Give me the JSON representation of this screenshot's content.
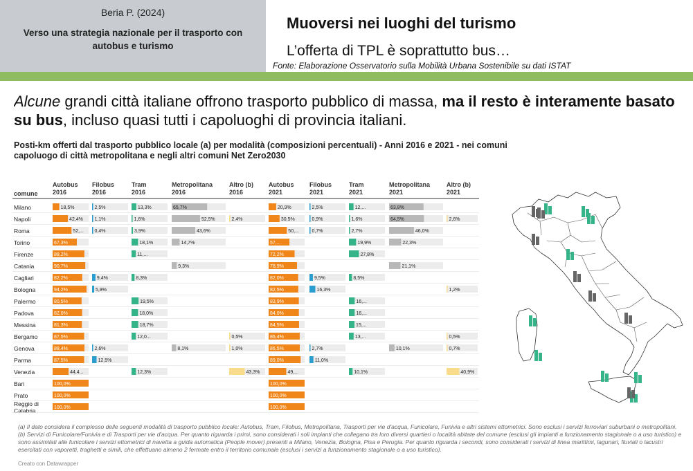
{
  "header": {
    "author": "Beria P. (2024)",
    "subtitle": "Verso una strategia nazionale per il trasporto con autobus e turismo",
    "title": "Muoversi nei luoghi del turismo",
    "subtitle2": "L’offerta di TPL è soprattutto bus…",
    "source": "Fonte: Elaborazione Osservatorio sulla Mobilità Urbana Sostenibile su dati ISTAT"
  },
  "lead": {
    "italic": "Alcune",
    "part1": " grandi città italiane offrono trasporto pubblico di massa, ",
    "bold": "ma il resto è interamente basato su bus",
    "part2": ", incluso quasi tutti i capoluoghi di provincia italiani."
  },
  "colors": {
    "autobus": "#f08519",
    "filobus": "#2a9ed0",
    "tram": "#35b48a",
    "metropolitana": "#b8b8b8",
    "altro": "#f8dc8c",
    "header_bg": "#c8ccd0",
    "green_bar": "#8fbc5e"
  },
  "chart_data": {
    "type": "table",
    "title": "Posti-km offerti dal trasporto pubblico locale (a) per modalità (composizioni percentuali) - Anni 2016 e 2021 - nei comuni capoluogo di città metropolitana e negli altri comuni Net Zero2030",
    "row_header": "comune",
    "columns": [
      {
        "label": [
          "Autobus",
          "2016"
        ],
        "mode": "autobus"
      },
      {
        "label": [
          "Filobus",
          "2016"
        ],
        "mode": "filobus"
      },
      {
        "label": [
          "Tram",
          "2016"
        ],
        "mode": "tram"
      },
      {
        "label": [
          "Metropolitana",
          "2016"
        ],
        "mode": "metropolitana"
      },
      {
        "label": [
          "Altro (b)",
          "2016"
        ],
        "mode": "altro"
      },
      {
        "label": [
          "Autobus",
          "2021"
        ],
        "mode": "autobus"
      },
      {
        "label": [
          "Filobus",
          "2021"
        ],
        "mode": "filobus"
      },
      {
        "label": [
          "Tram",
          "2021"
        ],
        "mode": "tram"
      },
      {
        "label": [
          "Metropolitana",
          "2021"
        ],
        "mode": "metropolitana"
      },
      {
        "label": [
          "Altro (b)",
          "2021"
        ],
        "mode": "altro"
      }
    ],
    "rows": [
      {
        "city": "Milano",
        "values": [
          18.5,
          2.5,
          13.3,
          65.7,
          null,
          20.9,
          2.5,
          12.8,
          63.8,
          null
        ],
        "labels": [
          "18,5%",
          "2,5%",
          "13,3%",
          "65,7%",
          "",
          "20,9%",
          "2,5%",
          "12,...",
          "63,8%",
          ""
        ]
      },
      {
        "city": "Napoli",
        "values": [
          42.4,
          1.1,
          1.6,
          52.5,
          2.4,
          30.5,
          0.9,
          1.6,
          64.5,
          2.6
        ],
        "labels": [
          "42,4%",
          "1,1%",
          "1,6%",
          "52,5%",
          "2,4%",
          "30,5%",
          "0,9%",
          "1,6%",
          "64,5%",
          "2,6%"
        ]
      },
      {
        "city": "Roma",
        "values": [
          52.5,
          0.4,
          3.9,
          43.6,
          null,
          50.6,
          0.7,
          2.7,
          46.0,
          null
        ],
        "labels": [
          "52,...",
          "0,4%",
          "3,9%",
          "43,6%",
          "",
          "50,...",
          "0,7%",
          "2,7%",
          "46,0%",
          ""
        ]
      },
      {
        "city": "Torino",
        "values": [
          67.3,
          null,
          18.1,
          14.7,
          null,
          57.8,
          null,
          19.9,
          22.3,
          null
        ],
        "labels": [
          "67,3%",
          "",
          "18,1%",
          "14,7%",
          "",
          "57,...",
          "",
          "19,9%",
          "22,3%",
          ""
        ]
      },
      {
        "city": "Firenze",
        "values": [
          88.2,
          null,
          11.8,
          null,
          null,
          72.2,
          null,
          27.8,
          null,
          null
        ],
        "labels": [
          "88,2%",
          "",
          "11,...",
          "",
          "",
          "72,2%",
          "",
          "27,8%",
          "",
          ""
        ]
      },
      {
        "city": "Catania",
        "values": [
          90.7,
          null,
          null,
          9.3,
          null,
          78.9,
          null,
          null,
          21.1,
          null
        ],
        "labels": [
          "90,7%",
          "",
          "",
          "9,3%",
          "",
          "78,9%",
          "",
          "",
          "21,1%",
          ""
        ]
      },
      {
        "city": "Cagliari",
        "values": [
          82.2,
          9.4,
          8.3,
          null,
          null,
          82.0,
          9.5,
          8.5,
          null,
          null
        ],
        "labels": [
          "82,2%",
          "9,4%",
          "8,3%",
          "",
          "",
          "82,0%",
          "9,5%",
          "8,5%",
          "",
          ""
        ]
      },
      {
        "city": "Bologna",
        "values": [
          94.2,
          5.8,
          null,
          null,
          null,
          82.5,
          16.3,
          null,
          null,
          1.2
        ],
        "labels": [
          "94,2%",
          "5,8%",
          "",
          "",
          "",
          "82,5%",
          "16,3%",
          "",
          "",
          "1,2%"
        ]
      },
      {
        "city": "Palermo",
        "values": [
          80.5,
          null,
          19.5,
          null,
          null,
          83.9,
          null,
          16.1,
          null,
          null
        ],
        "labels": [
          "80,5%",
          "",
          "19,5%",
          "",
          "",
          "83,9%",
          "",
          "16,...",
          "",
          ""
        ]
      },
      {
        "city": "Padova",
        "values": [
          82.0,
          null,
          18.0,
          null,
          null,
          84.0,
          null,
          16.0,
          null,
          null
        ],
        "labels": [
          "82,0%",
          "",
          "18,0%",
          "",
          "",
          "84,0%",
          "",
          "16,...",
          "",
          ""
        ]
      },
      {
        "city": "Messina",
        "values": [
          81.3,
          null,
          18.7,
          null,
          null,
          84.5,
          null,
          15.5,
          null,
          null
        ],
        "labels": [
          "81,3%",
          "",
          "18,7%",
          "",
          "",
          "84,5%",
          "",
          "15,...",
          "",
          ""
        ]
      },
      {
        "city": "Bergamo",
        "values": [
          87.5,
          null,
          12.0,
          null,
          0.5,
          86.4,
          null,
          13.1,
          null,
          0.5
        ],
        "labels": [
          "87,5%",
          "",
          "12,0...",
          "",
          "0,5%",
          "86,4%",
          "",
          "13,...",
          "",
          "0,5%"
        ]
      },
      {
        "city": "Genova",
        "values": [
          88.4,
          2.6,
          null,
          8.1,
          1.0,
          86.5,
          2.7,
          null,
          10.1,
          0.7
        ],
        "labels": [
          "88,4%",
          "2,6%",
          "",
          "8,1%",
          "1,0%",
          "86,5%",
          "2,7%",
          "",
          "10,1%",
          "0,7%"
        ]
      },
      {
        "city": "Parma",
        "values": [
          87.5,
          12.5,
          null,
          null,
          null,
          89.0,
          11.0,
          null,
          null,
          null
        ],
        "labels": [
          "87,5%",
          "12,5%",
          "",
          "",
          "",
          "89,0%",
          "11,0%",
          "",
          "",
          ""
        ]
      },
      {
        "city": "Venezia",
        "values": [
          44.4,
          null,
          12.3,
          null,
          43.3,
          49.0,
          null,
          10.1,
          null,
          40.9
        ],
        "labels": [
          "44,4...",
          "",
          "12,3%",
          "",
          "43,3%",
          "49,...",
          "",
          "10,1%",
          "",
          "40,9%"
        ]
      },
      {
        "city": "Bari",
        "values": [
          100.0,
          null,
          null,
          null,
          null,
          100.0,
          null,
          null,
          null,
          null
        ],
        "labels": [
          "100,0%",
          "",
          "",
          "",
          "",
          "100,0%",
          "",
          "",
          "",
          ""
        ]
      },
      {
        "city": "Prato",
        "values": [
          100.0,
          null,
          null,
          null,
          null,
          100.0,
          null,
          null,
          null,
          null
        ],
        "labels": [
          "100,0%",
          "",
          "",
          "",
          "",
          "100,0%",
          "",
          "",
          "",
          ""
        ]
      },
      {
        "city": "Reggio di Calabria",
        "values": [
          100.0,
          null,
          null,
          null,
          null,
          100.0,
          null,
          null,
          null,
          null
        ],
        "labels": [
          "100,0%",
          "",
          "",
          "",
          "",
          "100,0%",
          "",
          "",
          "",
          ""
        ]
      }
    ]
  },
  "notes": {
    "a": "(a) Il dato considera il complesso delle seguenti modalità di trasporto pubblico locale: Autobus, Tram, Filobus, Metropolitana, Trasporti per vie d'acqua, Funicolare, Funivia e altri sistemi ettometrici. Sono esclusi i servizi ferroviari suburbani o metropolitani.",
    "b": "(b) Servizi di Funicolare/Funivia e di Trasporti per vie d'acqua. Per quanto riguarda i primi, sono considerati i soli impianti che collegano tra loro diversi quartieri o località abitate del comune (esclusi gli impianti a funzionamento stagionale o a uso turistico) e sono assimilati alle funicolare i servizi ettometrici di navetta a guida automatica (People mover) presenti a Milano, Venezia, Bologna, Pisa e Perugia. Per quanto riguarda i secondi, sono considerati i servizi di linea marittimi, lagunari, fluviali o lacustri esercitati con vaporetti, traghetti e simili, che effettuano almeno 2 fermate entro il territorio comunale (esclusi i servizi a funzionamento stagionale o a uso turistico).",
    "credit": "Creato con Datawrapper"
  },
  "map": {
    "icons": [
      {
        "region": "Piemonte",
        "style": "grey"
      },
      {
        "region": "Lombardia",
        "style": "green"
      },
      {
        "region": "Lombardia-2",
        "style": "grey"
      },
      {
        "region": "Veneto",
        "style": "green"
      },
      {
        "region": "Veneto-2",
        "style": "green"
      },
      {
        "region": "Liguria",
        "style": "grey"
      },
      {
        "region": "Emilia",
        "style": "green"
      },
      {
        "region": "Toscana",
        "style": "grey"
      },
      {
        "region": "Lazio",
        "style": "grey"
      },
      {
        "region": "Campania",
        "style": "grey"
      },
      {
        "region": "Sardegna-N",
        "style": "green"
      },
      {
        "region": "Sardegna-S",
        "style": "green"
      },
      {
        "region": "Calabria",
        "style": "green"
      },
      {
        "region": "Sicilia-W",
        "style": "green"
      },
      {
        "region": "Sicilia-E",
        "style": "green"
      },
      {
        "region": "Sicilia-S",
        "style": "grey"
      }
    ]
  }
}
